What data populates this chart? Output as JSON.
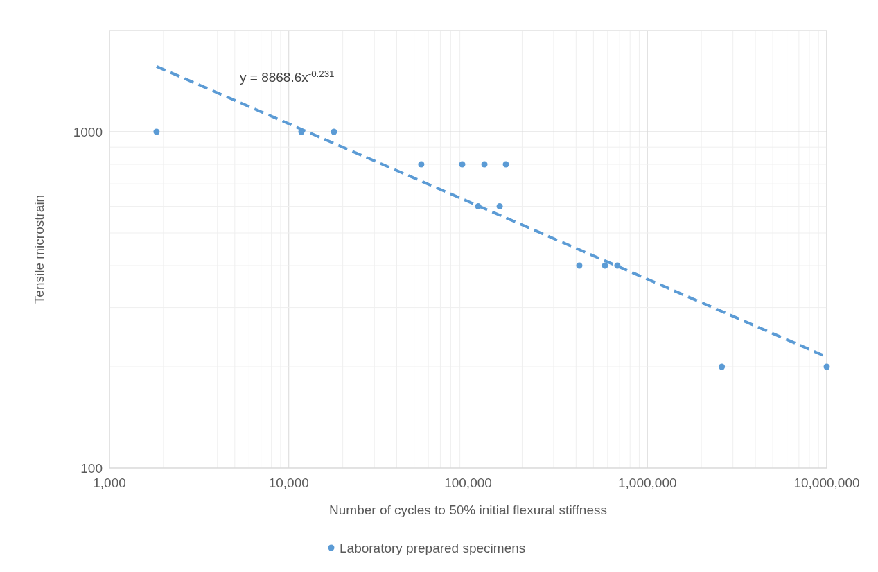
{
  "chart_data": {
    "type": "scatter",
    "xlabel": "Number of cycles to 50% initial flexural stiffness",
    "ylabel": "Tensile microstrain",
    "log": "xy",
    "grid": true,
    "legend": "bottom",
    "marker": "circle",
    "xlim": [
      1000,
      10000000
    ],
    "ylim": [
      100,
      2000
    ],
    "xticks": [
      {
        "value": 1000,
        "label": "1,000"
      },
      {
        "value": 2000,
        "label": null
      },
      {
        "value": 3000,
        "label": null
      },
      {
        "value": 4000,
        "label": null
      },
      {
        "value": 5000,
        "label": null
      },
      {
        "value": 6000,
        "label": null
      },
      {
        "value": 7000,
        "label": null
      },
      {
        "value": 8000,
        "label": null
      },
      {
        "value": 9000,
        "label": null
      },
      {
        "value": 10000,
        "label": "10,000"
      },
      {
        "value": 20000,
        "label": null
      },
      {
        "value": 30000,
        "label": null
      },
      {
        "value": 40000,
        "label": null
      },
      {
        "value": 50000,
        "label": null
      },
      {
        "value": 60000,
        "label": null
      },
      {
        "value": 70000,
        "label": null
      },
      {
        "value": 80000,
        "label": null
      },
      {
        "value": 90000,
        "label": null
      },
      {
        "value": 100000,
        "label": "100,000"
      },
      {
        "value": 200000,
        "label": null
      },
      {
        "value": 300000,
        "label": null
      },
      {
        "value": 400000,
        "label": null
      },
      {
        "value": 500000,
        "label": null
      },
      {
        "value": 600000,
        "label": null
      },
      {
        "value": 700000,
        "label": null
      },
      {
        "value": 800000,
        "label": null
      },
      {
        "value": 900000,
        "label": null
      },
      {
        "value": 1000000,
        "label": "1,000,000"
      },
      {
        "value": 2000000,
        "label": null
      },
      {
        "value": 3000000,
        "label": null
      },
      {
        "value": 4000000,
        "label": null
      },
      {
        "value": 5000000,
        "label": null
      },
      {
        "value": 6000000,
        "label": null
      },
      {
        "value": 7000000,
        "label": null
      },
      {
        "value": 8000000,
        "label": null
      },
      {
        "value": 9000000,
        "label": null
      },
      {
        "value": 10000000,
        "label": "10,000,000"
      }
    ],
    "yticks": [
      100,
      {
        "value": 200,
        "label": null
      },
      {
        "value": 300,
        "label": null
      },
      {
        "value": 400,
        "label": null
      },
      {
        "value": 500,
        "label": null
      },
      {
        "value": 600,
        "label": null
      },
      {
        "value": 700,
        "label": null
      },
      {
        "value": 800,
        "label": null
      },
      {
        "value": 900,
        "label": null
      },
      1000,
      {
        "value": 2000,
        "label": null
      }
    ],
    "annotations": [
      "y = 8868.6x$^{-0.231}$"
    ],
    "series": [
      {
        "name": "Laboratory prepared specimens",
        "color": "#5b9bd5",
        "x": [
          1830,
          11760,
          17860,
          54800,
          92700,
          123300,
          162500,
          113800,
          150000,
          417000,
          580000,
          680000,
          2600000,
          10000000
        ],
        "values": [
          1000,
          1000,
          1000,
          800,
          800,
          800,
          800,
          600,
          600,
          400,
          400,
          400,
          200,
          200
        ]
      },
      {
        "type": "line",
        "color": "#5b9bd5",
        "line_style": "dashed",
        "marker": "none",
        "x": [
          1830,
          10000000
        ],
        "values": [
          1564,
          214
        ]
      }
    ]
  }
}
